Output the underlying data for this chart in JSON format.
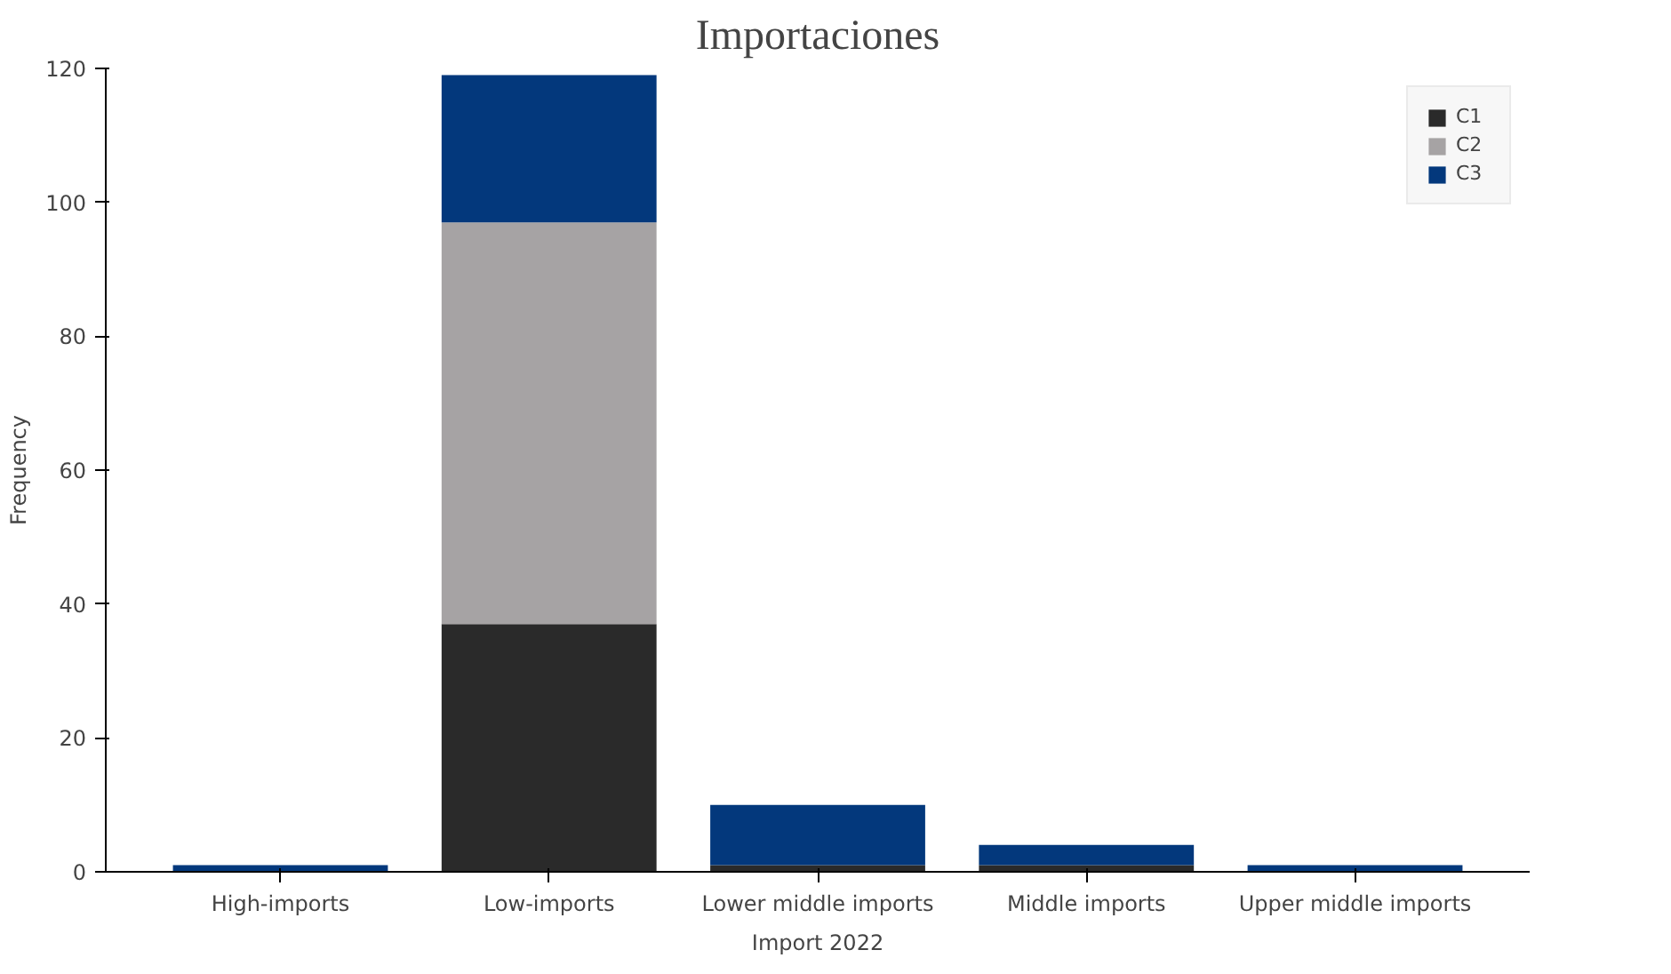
{
  "chart_data": {
    "type": "bar",
    "title": "Importaciones",
    "xlabel": "Import 2022",
    "ylabel": "Frequency",
    "stacked": true,
    "categories": [
      "High-imports",
      "Low-imports",
      "Lower middle imports",
      "Middle imports",
      "Upper middle imports"
    ],
    "series": [
      {
        "name": "C1",
        "color": "#2a2a2a",
        "values": [
          0,
          37,
          1,
          1,
          0
        ]
      },
      {
        "name": "C2",
        "color": "#a6a3a4",
        "values": [
          0,
          60,
          0,
          0,
          0
        ]
      },
      {
        "name": "C3",
        "color": "#03387c",
        "values": [
          1,
          22,
          9,
          3,
          1
        ]
      }
    ],
    "ylim": [
      0,
      120
    ],
    "yticks": [
      0,
      20,
      40,
      60,
      80,
      100,
      120
    ],
    "grid": false,
    "legend": "top right"
  }
}
